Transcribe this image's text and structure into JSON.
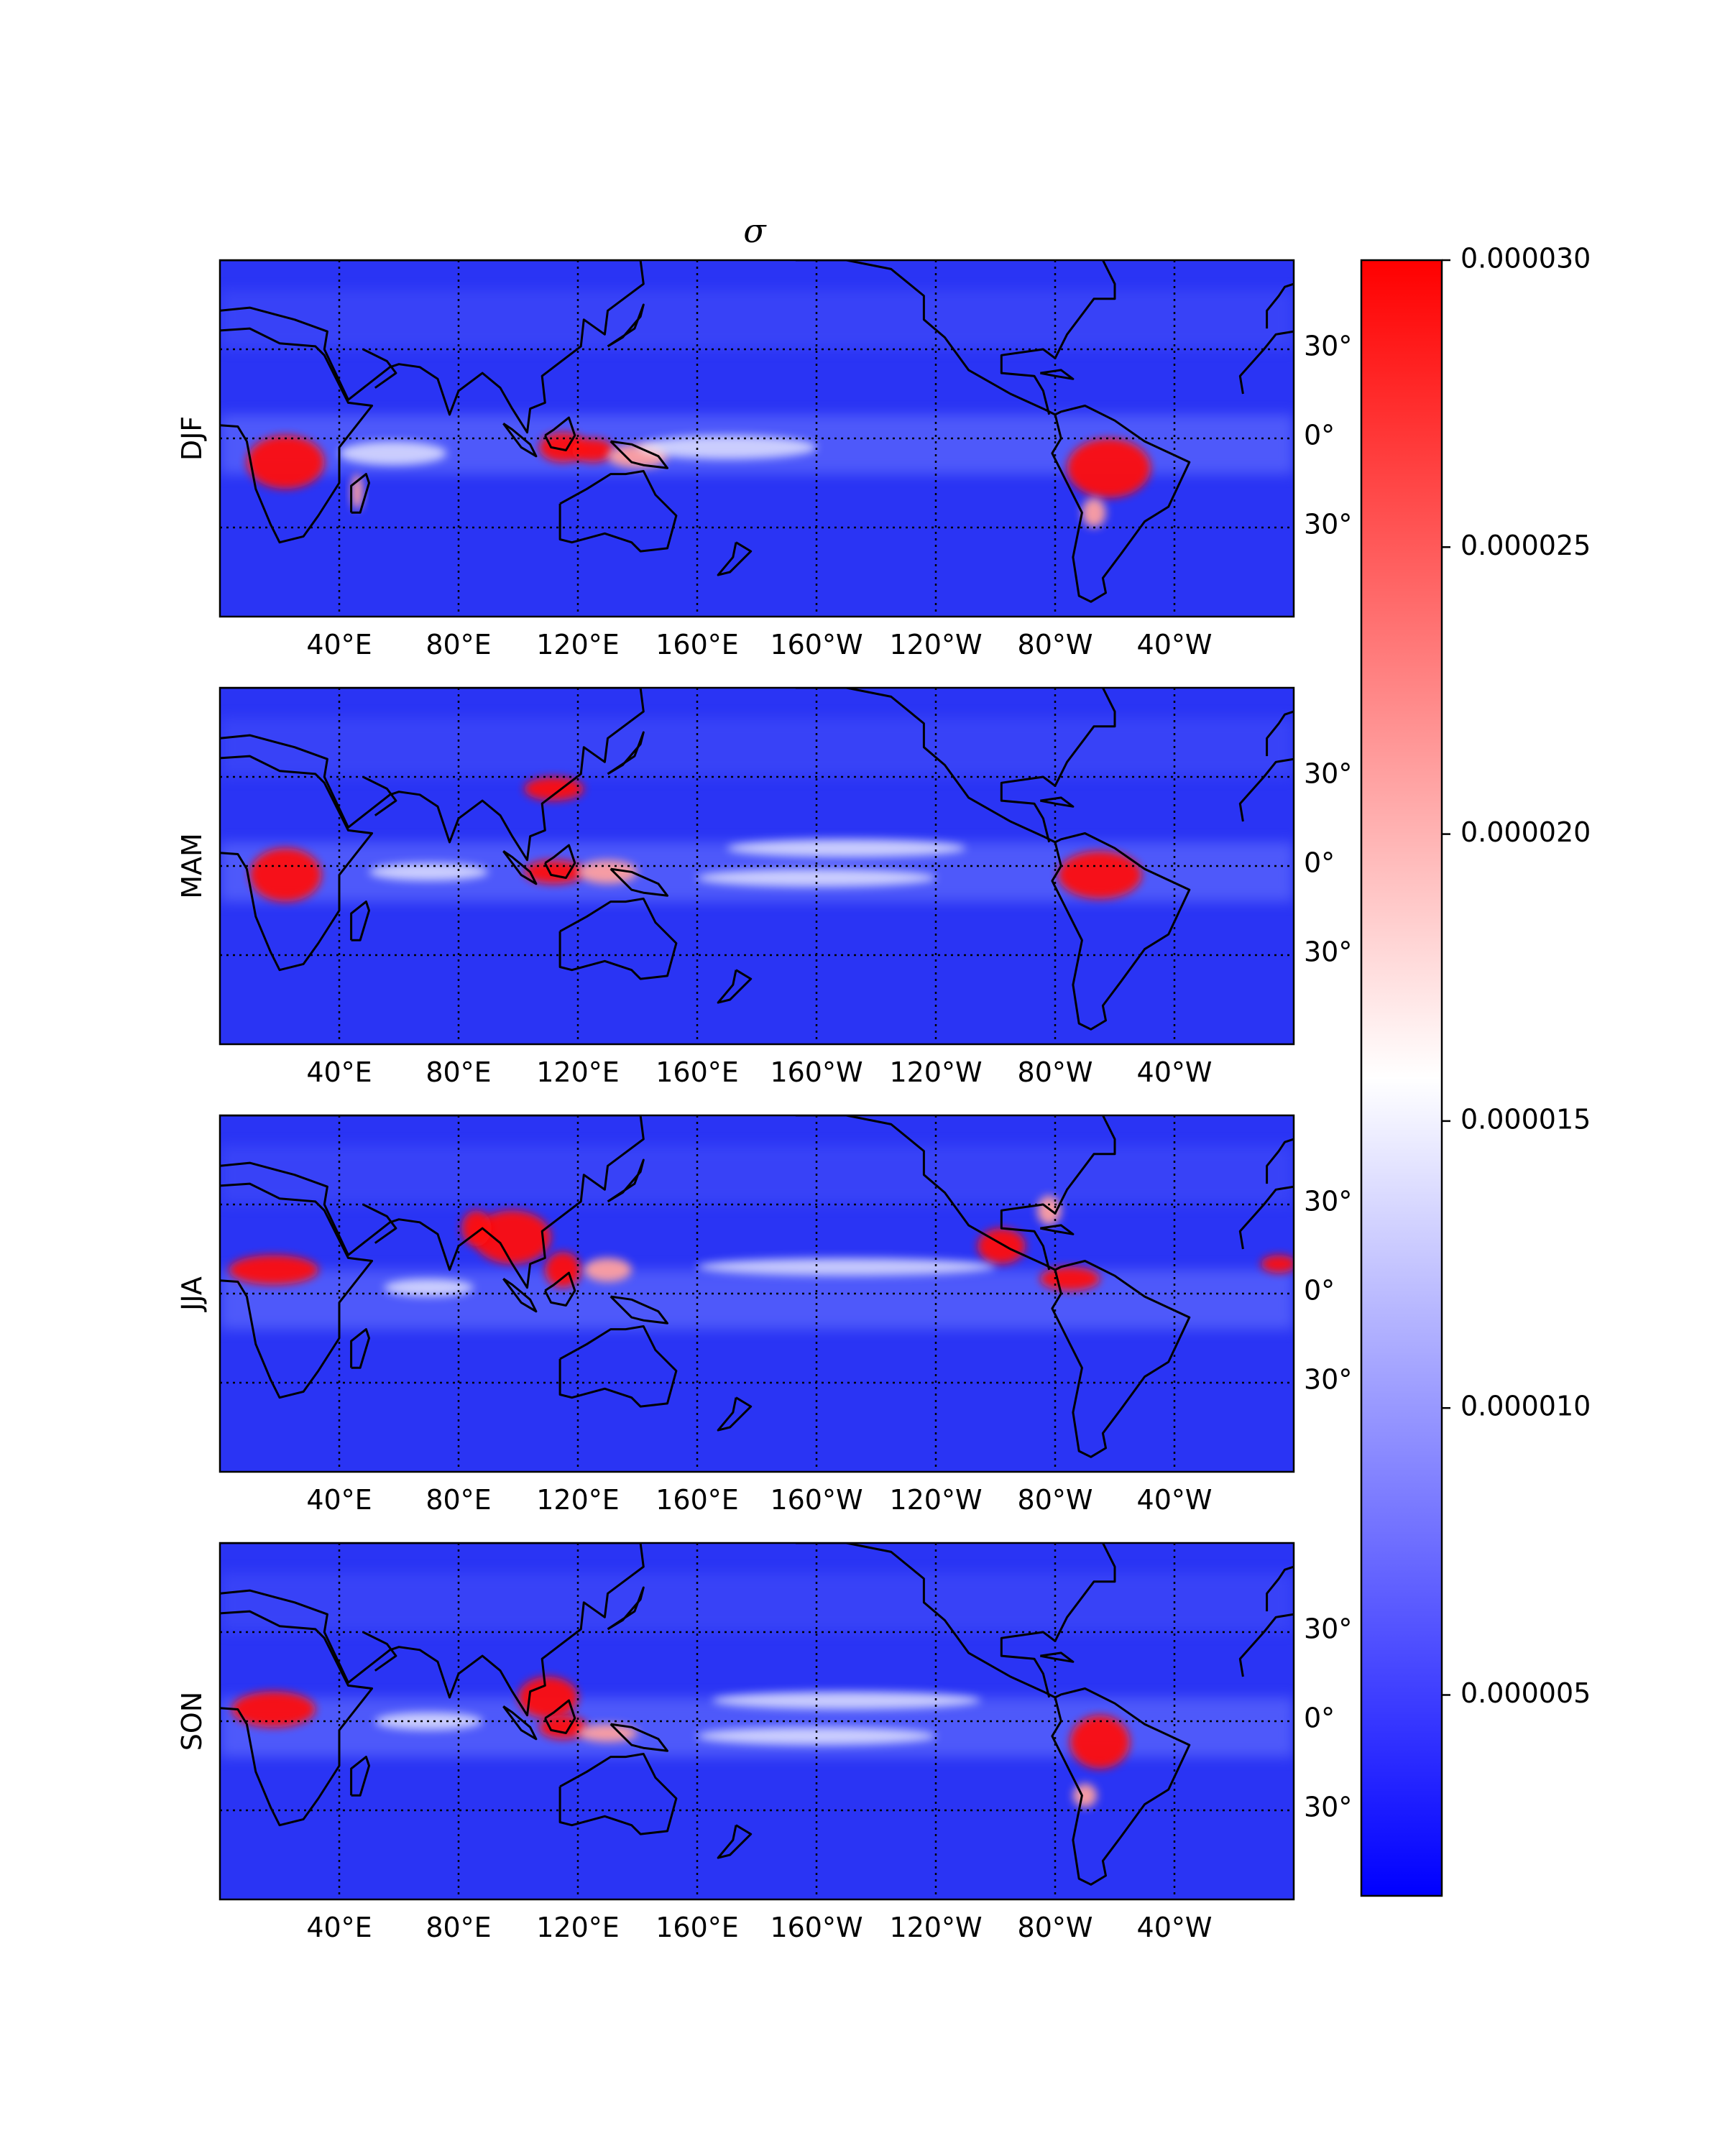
{
  "figure": {
    "title": "σ"
  },
  "chart_data": {
    "type": "heatmap",
    "title": "σ",
    "panels": [
      {
        "label": "DJF"
      },
      {
        "label": "MAM"
      },
      {
        "label": "JJA"
      },
      {
        "label": "SON"
      }
    ],
    "x_ticks": [
      "40°E",
      "80°E",
      "120°E",
      "160°E",
      "160°W",
      "120°W",
      "80°W",
      "40°W"
    ],
    "x_tick_lons": [
      40,
      80,
      120,
      160,
      200,
      240,
      280,
      320
    ],
    "lon_range": [
      0,
      360
    ],
    "lat_range": [
      -60,
      60
    ],
    "y_ticks": [
      "30°",
      "0°",
      "30°"
    ],
    "y_tick_lats": [
      30,
      0,
      -30
    ],
    "gridlines": "dotted",
    "coastlines": true,
    "colormap": "bwr",
    "colorbar": {
      "ticks": [
        "0.000030",
        "0.000025",
        "0.000020",
        "0.000015",
        "0.000010",
        "0.000005"
      ],
      "tick_values": [
        3e-05,
        2.5e-05,
        2e-05,
        1.5e-05,
        1e-05,
        5e-06
      ],
      "vmin": 1.5e-06,
      "vmax": 3e-05,
      "low_color": "#0000ff",
      "mid_color": "#ffffff",
      "high_color": "#ff0000"
    }
  }
}
